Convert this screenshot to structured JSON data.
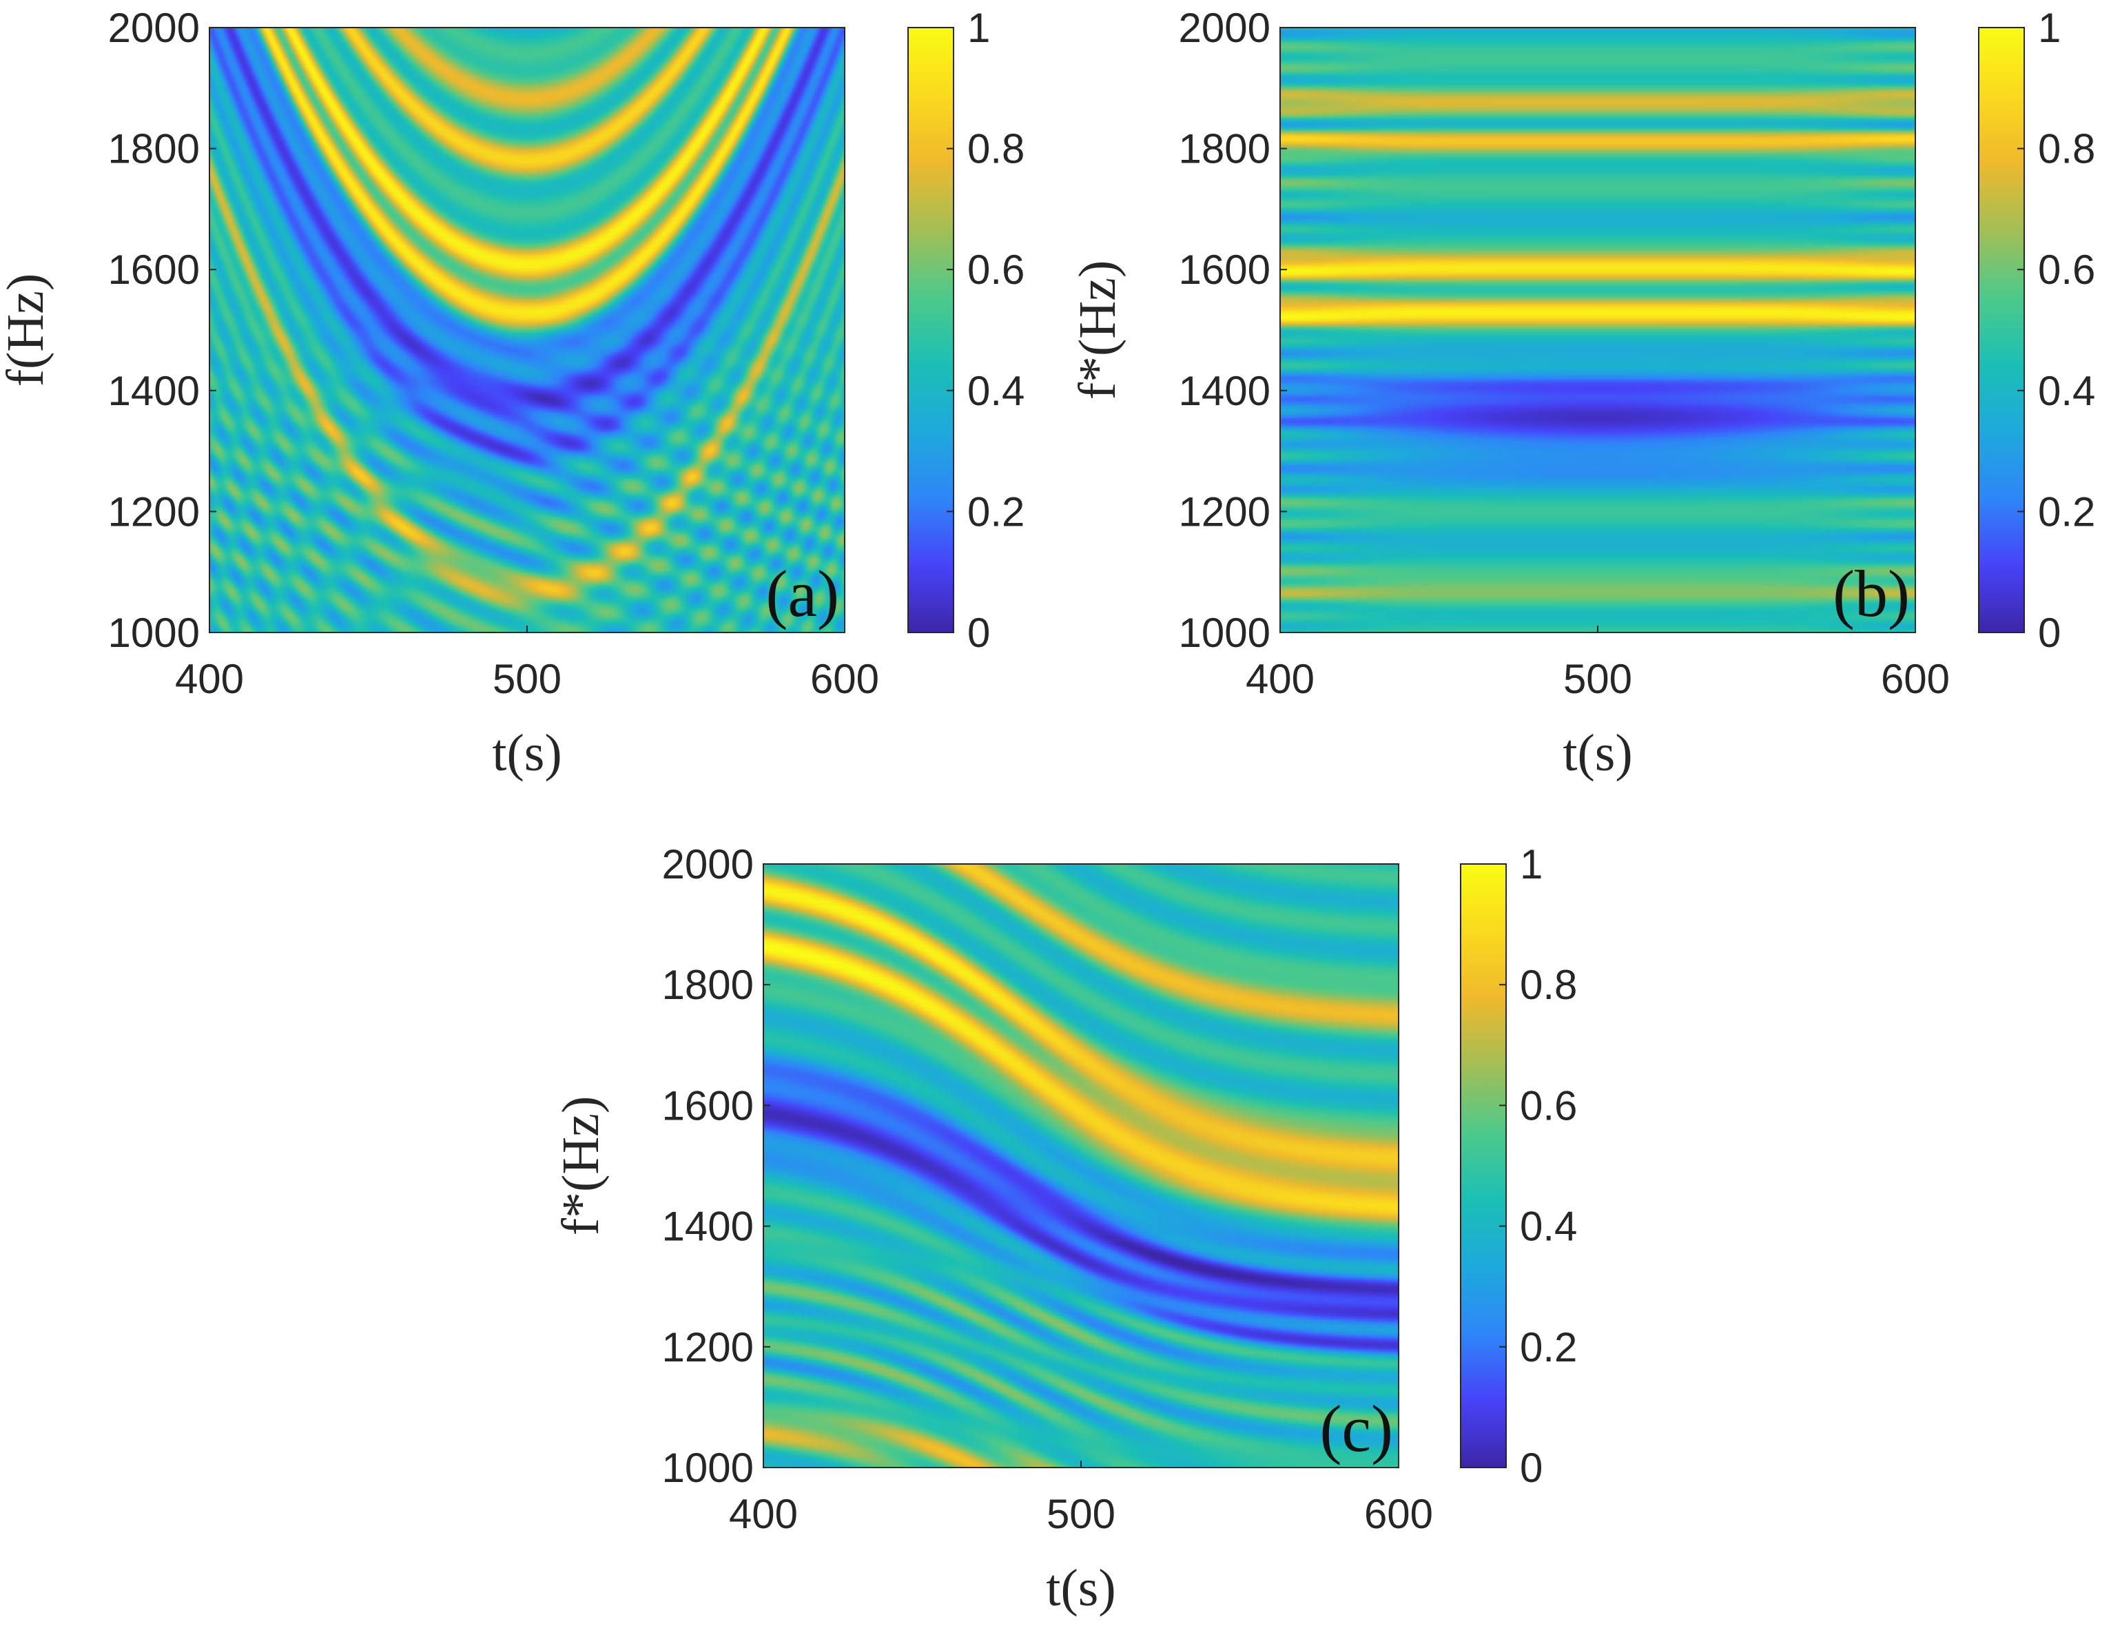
{
  "figure": {
    "title": ""
  },
  "colorscale": [
    "#3e26a8",
    "#4743f8",
    "#2f86f8",
    "#1ea9dc",
    "#1cbfb5",
    "#4ec98a",
    "#a4be55",
    "#efb92d",
    "#fada1e",
    "#f9fb15"
  ],
  "chart_data": [
    {
      "id": "a",
      "type": "heatmap",
      "panel_label": "(a)",
      "xlabel": "t(s)",
      "ylabel": "f(Hz)",
      "xlim": [
        400,
        600
      ],
      "ylim": [
        1000,
        2000
      ],
      "x_ticks": [
        400,
        500,
        600
      ],
      "y_ticks": [
        1000,
        1200,
        1400,
        1600,
        1800,
        2000
      ],
      "colorbar": {
        "min": 0,
        "max": 1,
        "ticks": [
          0,
          0.2,
          0.4,
          0.6,
          0.8,
          1
        ]
      },
      "pattern": "parabolic",
      "ridges": [
        {
          "vertex_t": 500,
          "vertex_f": 1530,
          "curvature_hz_per_s2": 0.07,
          "intensity": 0.95
        },
        {
          "vertex_t": 500,
          "vertex_f": 1610,
          "curvature_hz_per_s2": 0.07,
          "intensity": 0.9
        },
        {
          "vertex_t": 500,
          "vertex_f": 1780,
          "curvature_hz_per_s2": 0.07,
          "intensity": 0.8
        },
        {
          "vertex_t": 500,
          "vertex_f": 1890,
          "curvature_hz_per_s2": 0.07,
          "intensity": 0.75
        },
        {
          "vertex_t": 500,
          "vertex_f": 1060,
          "curvature_hz_per_s2": 0.05,
          "intensity": 0.7
        }
      ],
      "low_region": {
        "t": 500,
        "f": 1370
      }
    },
    {
      "id": "b",
      "type": "heatmap",
      "panel_label": "(b)",
      "xlabel": "t(s)",
      "ylabel": "f*(Hz)",
      "xlim": [
        400,
        600
      ],
      "ylim": [
        1000,
        2000
      ],
      "x_ticks": [
        400,
        500,
        600
      ],
      "y_ticks": [
        1000,
        1200,
        1400,
        1600,
        1800,
        2000
      ],
      "colorbar": {
        "min": 0,
        "max": 1,
        "ticks": [
          0,
          0.2,
          0.4,
          0.6,
          0.8,
          1
        ]
      },
      "pattern": "horizontal",
      "ridges": [
        {
          "f": 1530,
          "intensity": 0.9
        },
        {
          "f": 1600,
          "intensity": 0.95
        },
        {
          "f": 1810,
          "intensity": 0.85
        },
        {
          "f": 1880,
          "intensity": 0.8
        },
        {
          "f": 1060,
          "intensity": 0.65
        }
      ],
      "low_region": {
        "t": 500,
        "f": 1340
      }
    },
    {
      "id": "c",
      "type": "heatmap",
      "panel_label": "(c)",
      "xlabel": "t(s)",
      "ylabel": "f*(Hz)",
      "xlim": [
        400,
        600
      ],
      "ylim": [
        1000,
        2000
      ],
      "x_ticks": [
        400,
        500,
        600
      ],
      "y_ticks": [
        1000,
        1200,
        1400,
        1600,
        1800,
        2000
      ],
      "colorbar": {
        "min": 0,
        "max": 1,
        "ticks": [
          0,
          0.2,
          0.4,
          0.6,
          0.8,
          1
        ]
      },
      "pattern": "sigmoid",
      "ridges": [
        {
          "f_at_400": 1890,
          "f_at_600": 1430,
          "intensity": 0.95
        },
        {
          "f_at_400": 1990,
          "f_at_600": 1510,
          "intensity": 0.9
        },
        {
          "f_at_400": 2150,
          "f_at_600": 1750,
          "intensity": 0.8
        },
        {
          "f_at_400": 1080,
          "f_at_600": 900,
          "intensity": 0.7
        }
      ],
      "low_region": {
        "t": 540,
        "f": 1260
      }
    }
  ]
}
